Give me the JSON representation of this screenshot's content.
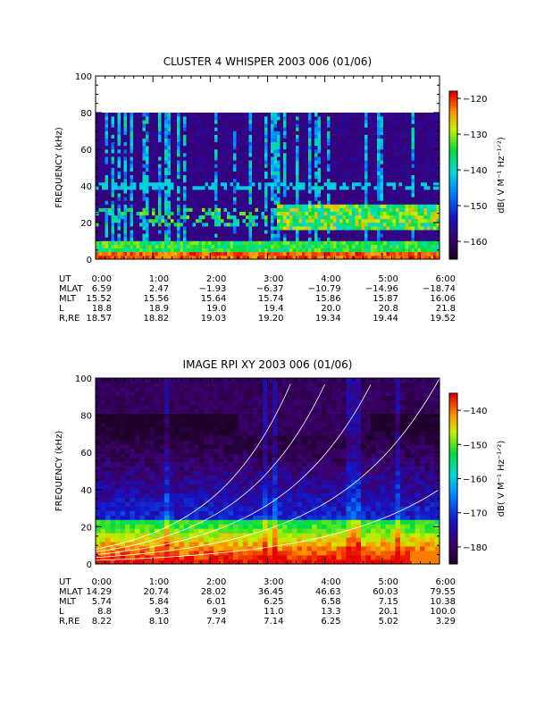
{
  "chart_data": [
    {
      "type": "heatmap",
      "title": "CLUSTER 4 WHISPER 2003 006 (01/06)",
      "ylabel": "FREQUENCY (kHz)",
      "yticks": [
        "0",
        "20",
        "40",
        "60",
        "80",
        "100"
      ],
      "ylim": [
        0,
        100
      ],
      "data_top_khz": 80,
      "xlim_hours": [
        0,
        6
      ],
      "colorbar": {
        "label": "dB( V M⁻¹ Hz⁻¹ᐟ²)",
        "ticks": [
          "-120",
          "-130",
          "-140",
          "-150",
          "-160"
        ],
        "range": [
          -165,
          -118
        ]
      },
      "ephemeris": {
        "rows": [
          {
            "label": "UT",
            "values": [
              "0:00",
              "1:00",
              "2:00",
              "3:00",
              "4:00",
              "5:00",
              "6:00"
            ]
          },
          {
            "label": "MLAT",
            "values": [
              "6.59",
              "2.47",
              "−1.93",
              "−6.37",
              "−10.79",
              "−14.96",
              "−18.74"
            ]
          },
          {
            "label": "MLT",
            "values": [
              "15.52",
              "15.56",
              "15.64",
              "15.74",
              "15.86",
              "15.87",
              "16.06"
            ]
          },
          {
            "label": "L",
            "values": [
              "18.8",
              "18.9",
              "19.0",
              "19.4",
              "20.0",
              "20.8",
              "21.8"
            ]
          },
          {
            "label": "R,RE",
            "values": [
              "18.57",
              "18.82",
              "19.03",
              "19.20",
              "19.34",
              "19.44",
              "19.52"
            ]
          }
        ]
      }
    },
    {
      "type": "heatmap",
      "title": "IMAGE RPI XY 2003 006 (01/06)",
      "ylabel": "FREQUENCY (kHz)",
      "yticks": [
        "0",
        "20",
        "40",
        "60",
        "80",
        "100"
      ],
      "ylim": [
        0,
        100
      ],
      "xlim_hours": [
        0,
        6
      ],
      "overlay": "white cutoff curves rising toward 6:00",
      "colorbar": {
        "label": "dB( V M⁻¹ Hz⁻¹ᐟ²)",
        "ticks": [
          "-140",
          "-150",
          "-160",
          "-170",
          "-180"
        ],
        "range": [
          -185,
          -135
        ]
      },
      "ephemeris": {
        "rows": [
          {
            "label": "UT",
            "values": [
              "0:00",
              "1:00",
              "2:00",
              "3:00",
              "4:00",
              "5:00",
              "6:00"
            ]
          },
          {
            "label": "MLAT",
            "values": [
              "14.29",
              "20.74",
              "28.02",
              "36.45",
              "46.63",
              "60.03",
              "79.55"
            ]
          },
          {
            "label": "MLT",
            "values": [
              "5.74",
              "5.84",
              "6.01",
              "6.25",
              "6.58",
              "7.15",
              "10.38"
            ]
          },
          {
            "label": "L",
            "values": [
              "8.8",
              "9.3",
              "9.9",
              "11.0",
              "13.3",
              "20.1",
              "100.0"
            ]
          },
          {
            "label": "R,RE",
            "values": [
              "8.22",
              "8.10",
              "7.74",
              "7.14",
              "6.25",
              "5.02",
              "3.29"
            ]
          }
        ]
      }
    }
  ]
}
